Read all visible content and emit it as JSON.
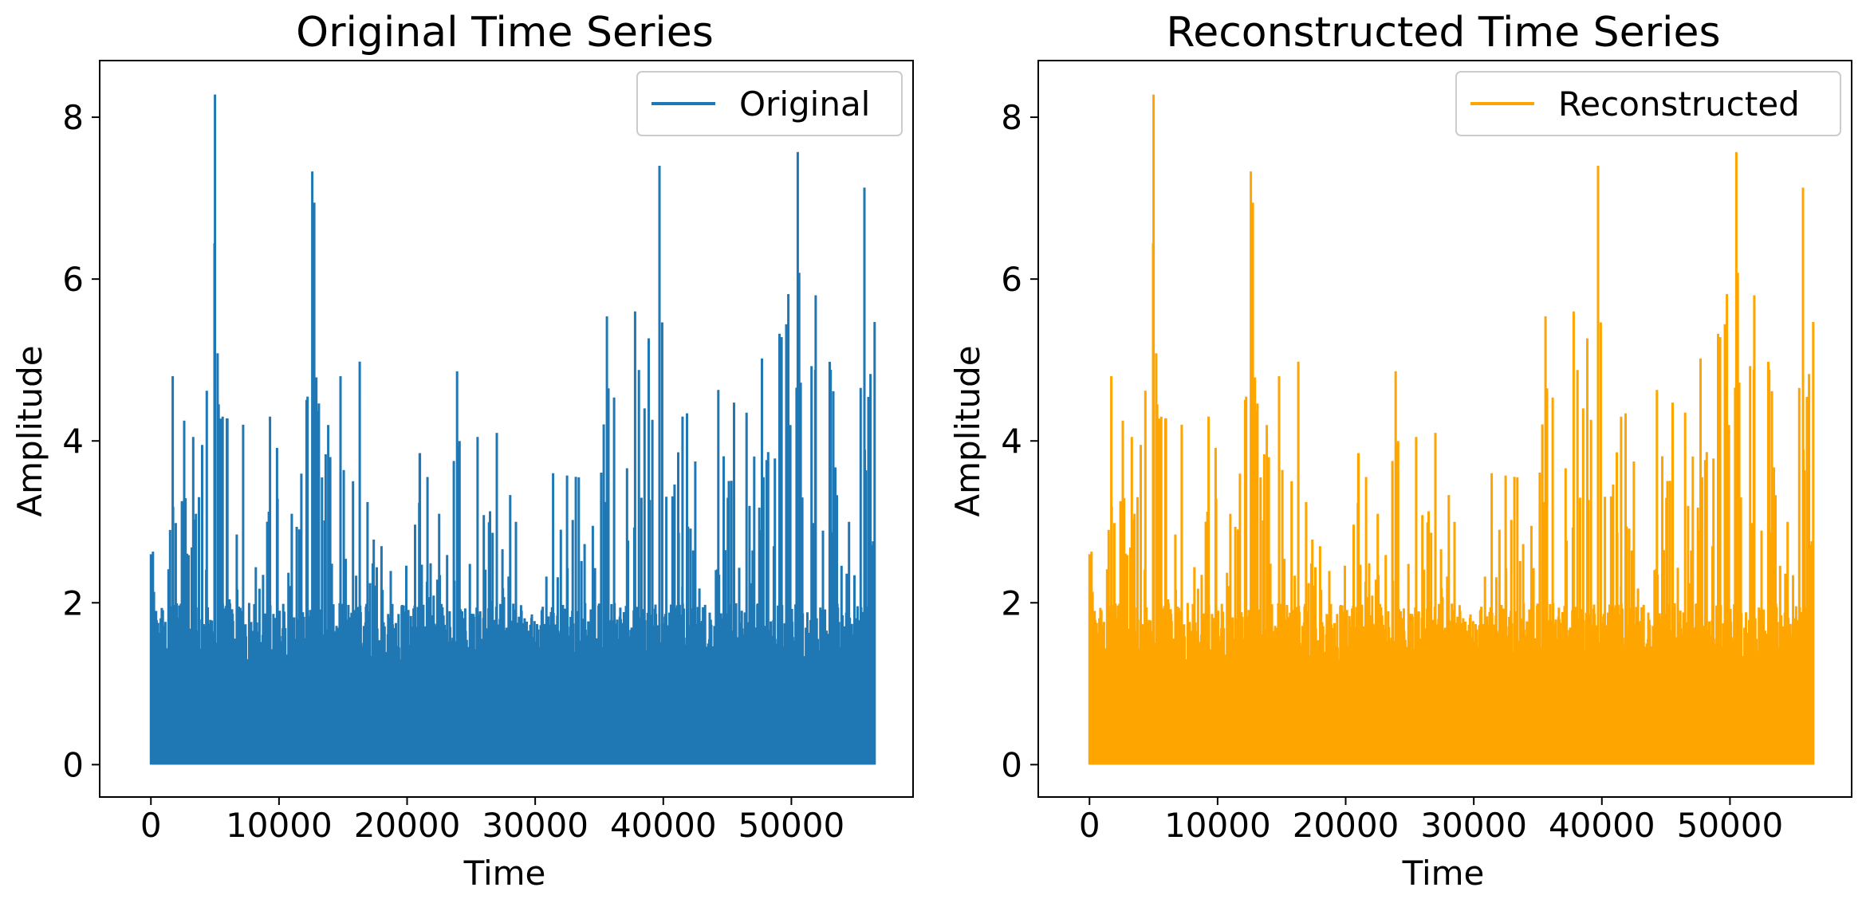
{
  "chart_data": [
    {
      "type": "line",
      "title": "Original Time Series",
      "xlabel": "Time",
      "ylabel": "Amplitude",
      "xlim": [
        -4000,
        59500
      ],
      "ylim": [
        -0.4,
        8.7
      ],
      "xticks": [
        0,
        10000,
        20000,
        30000,
        40000,
        50000
      ],
      "yticks": [
        0,
        2,
        4,
        6,
        8
      ],
      "grid": false,
      "legend_position": "top-right",
      "series": [
        {
          "name": "Original",
          "color": "#1f77b4",
          "x_range": [
            0,
            56500
          ],
          "baseline": 0,
          "envelope": [
            {
              "x": 0,
              "y": 2.6
            },
            {
              "x": 1500,
              "y": 2.9
            },
            {
              "x": 1700,
              "y": 4.8
            },
            {
              "x": 2600,
              "y": 4.25
            },
            {
              "x": 3300,
              "y": 4.05
            },
            {
              "x": 4000,
              "y": 3.95
            },
            {
              "x": 5000,
              "y": 8.28
            },
            {
              "x": 5600,
              "y": 4.3
            },
            {
              "x": 7200,
              "y": 4.2
            },
            {
              "x": 9300,
              "y": 4.3
            },
            {
              "x": 11000,
              "y": 3.1
            },
            {
              "x": 12600,
              "y": 7.33
            },
            {
              "x": 14000,
              "y": 3.8
            },
            {
              "x": 14800,
              "y": 4.8
            },
            {
              "x": 16300,
              "y": 4.98
            },
            {
              "x": 18000,
              "y": 2.7
            },
            {
              "x": 21000,
              "y": 3.85
            },
            {
              "x": 22500,
              "y": 3.1
            },
            {
              "x": 23900,
              "y": 4.86
            },
            {
              "x": 25500,
              "y": 4.05
            },
            {
              "x": 27000,
              "y": 4.1
            },
            {
              "x": 28500,
              "y": 3.0
            },
            {
              "x": 29500,
              "y": 1.6
            },
            {
              "x": 31400,
              "y": 3.6
            },
            {
              "x": 33400,
              "y": 3.55
            },
            {
              "x": 34500,
              "y": 2.95
            },
            {
              "x": 35600,
              "y": 5.54
            },
            {
              "x": 37800,
              "y": 5.6
            },
            {
              "x": 39700,
              "y": 7.4
            },
            {
              "x": 41500,
              "y": 4.3
            },
            {
              "x": 44300,
              "y": 4.63
            },
            {
              "x": 46500,
              "y": 4.35
            },
            {
              "x": 47700,
              "y": 5.02
            },
            {
              "x": 50500,
              "y": 7.57
            },
            {
              "x": 51900,
              "y": 5.8
            },
            {
              "x": 53000,
              "y": 4.97
            },
            {
              "x": 54500,
              "y": 3.0
            },
            {
              "x": 55700,
              "y": 7.13
            },
            {
              "x": 56500,
              "y": 5.47
            }
          ]
        }
      ]
    },
    {
      "type": "line",
      "title": "Reconstructed Time Series",
      "xlabel": "Time",
      "ylabel": "Amplitude",
      "xlim": [
        -4000,
        59500
      ],
      "ylim": [
        -0.4,
        8.7
      ],
      "xticks": [
        0,
        10000,
        20000,
        30000,
        40000,
        50000
      ],
      "yticks": [
        0,
        2,
        4,
        6,
        8
      ],
      "grid": false,
      "legend_position": "top-right",
      "series": [
        {
          "name": "Reconstructed",
          "color": "#ffa500",
          "x_range": [
            0,
            56500
          ],
          "baseline": 0,
          "envelope": [
            {
              "x": 0,
              "y": 2.6
            },
            {
              "x": 1500,
              "y": 2.9
            },
            {
              "x": 1700,
              "y": 4.8
            },
            {
              "x": 2600,
              "y": 4.25
            },
            {
              "x": 3300,
              "y": 4.05
            },
            {
              "x": 4000,
              "y": 3.95
            },
            {
              "x": 5000,
              "y": 8.28
            },
            {
              "x": 5600,
              "y": 4.3
            },
            {
              "x": 7200,
              "y": 4.2
            },
            {
              "x": 9300,
              "y": 4.3
            },
            {
              "x": 11000,
              "y": 3.1
            },
            {
              "x": 12600,
              "y": 7.33
            },
            {
              "x": 14000,
              "y": 3.8
            },
            {
              "x": 14800,
              "y": 4.8
            },
            {
              "x": 16300,
              "y": 4.98
            },
            {
              "x": 18000,
              "y": 2.7
            },
            {
              "x": 21000,
              "y": 3.85
            },
            {
              "x": 22500,
              "y": 3.1
            },
            {
              "x": 23900,
              "y": 4.86
            },
            {
              "x": 25500,
              "y": 4.05
            },
            {
              "x": 27000,
              "y": 4.1
            },
            {
              "x": 28500,
              "y": 3.0
            },
            {
              "x": 29500,
              "y": 1.6
            },
            {
              "x": 31400,
              "y": 3.6
            },
            {
              "x": 33400,
              "y": 3.55
            },
            {
              "x": 34500,
              "y": 2.95
            },
            {
              "x": 35600,
              "y": 5.54
            },
            {
              "x": 37800,
              "y": 5.6
            },
            {
              "x": 39700,
              "y": 7.4
            },
            {
              "x": 41500,
              "y": 4.3
            },
            {
              "x": 44300,
              "y": 4.63
            },
            {
              "x": 46500,
              "y": 4.35
            },
            {
              "x": 47700,
              "y": 5.02
            },
            {
              "x": 50500,
              "y": 7.57
            },
            {
              "x": 51900,
              "y": 5.8
            },
            {
              "x": 53000,
              "y": 4.97
            },
            {
              "x": 54500,
              "y": 3.0
            },
            {
              "x": 55700,
              "y": 7.13
            },
            {
              "x": 56500,
              "y": 5.47
            }
          ]
        }
      ]
    }
  ]
}
